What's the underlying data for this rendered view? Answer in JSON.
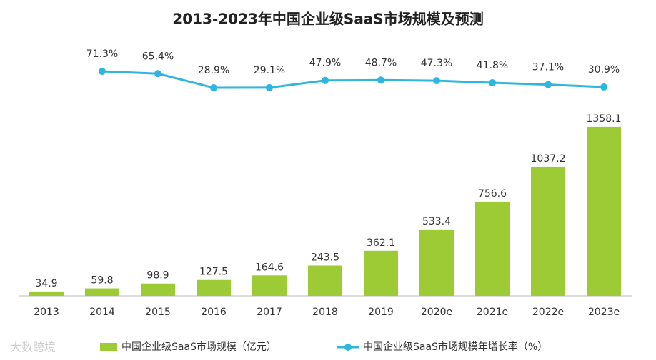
{
  "chart_data": {
    "type": "bar_line",
    "title": "2013-2023年中国企业级SaaS市场规模及预测",
    "categories": [
      "2013",
      "2014",
      "2015",
      "2016",
      "2017",
      "2018",
      "2019",
      "2020e",
      "2021e",
      "2022e",
      "2023e"
    ],
    "series": [
      {
        "name": "中国企业级SaaS市场规模（亿元）",
        "type": "bar",
        "color": "#9dcb35",
        "values": [
          34.9,
          59.8,
          98.9,
          127.5,
          164.6,
          243.5,
          362.1,
          533.4,
          756.6,
          1037.2,
          1358.1
        ]
      },
      {
        "name": "中国企业级SaaS市场规模年增长率（%）",
        "type": "line",
        "axis": "y2",
        "color": "#2fb6e0",
        "values": [
          null,
          71.3,
          65.4,
          28.9,
          29.1,
          47.9,
          48.7,
          47.3,
          41.8,
          37.1,
          30.9
        ],
        "value_labels": [
          null,
          "71.3%",
          "65.4%",
          "28.9%",
          "29.1%",
          "47.9%",
          "48.7%",
          "47.3%",
          "41.8%",
          "37.1%",
          "30.9%"
        ]
      }
    ],
    "ylim": [
      0,
      1400
    ],
    "y2lim": [
      0,
      100
    ],
    "watermark": "大数跨境"
  }
}
